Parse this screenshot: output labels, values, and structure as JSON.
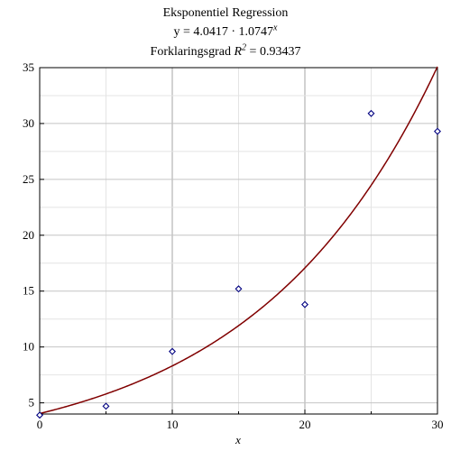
{
  "chart_data": {
    "type": "scatter",
    "title": "Eksponentiel Regression",
    "equation": {
      "lhs": "y = 4.0417 · 1.0747",
      "exponent": "x"
    },
    "r_squared": {
      "prefix": "Forklaringsgrad ",
      "symbol": "R",
      "exponent": "2",
      "suffix": " = 0.93437"
    },
    "xlabel": "x",
    "ylabel": "",
    "xlim": [
      0,
      30
    ],
    "ylim": [
      4,
      35
    ],
    "x_ticks": [
      0,
      10,
      20,
      30
    ],
    "y_ticks": [
      5,
      10,
      15,
      20,
      25,
      30,
      35
    ],
    "grid": true,
    "series": [
      {
        "kind": "points",
        "marker": "diamond",
        "color": "#000080",
        "x": [
          0,
          5,
          10,
          15,
          20,
          25,
          30
        ],
        "y": [
          3.9,
          4.7,
          9.6,
          15.2,
          13.8,
          30.9,
          29.3
        ]
      },
      {
        "kind": "curve",
        "color": "#800000",
        "a": 4.0417,
        "b": 1.0747
      }
    ]
  }
}
